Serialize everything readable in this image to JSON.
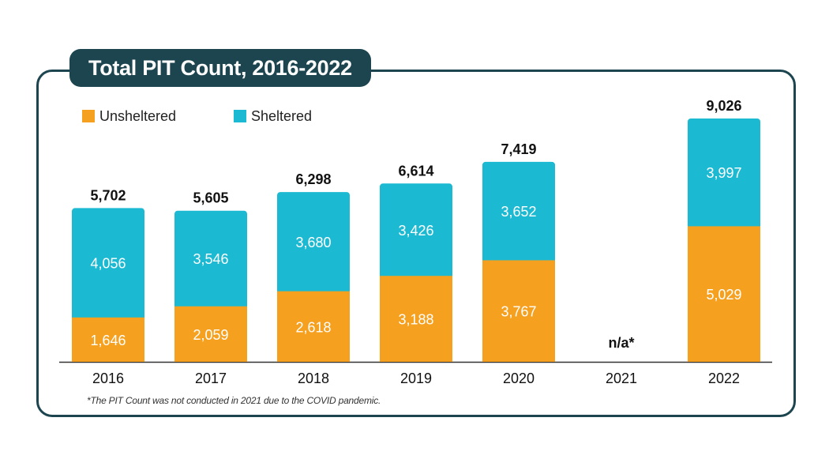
{
  "chart_data": {
    "type": "bar",
    "stacked": true,
    "title": "Total PIT Count, 2016-2022",
    "categories": [
      "2016",
      "2017",
      "2018",
      "2019",
      "2020",
      "2021",
      "2022"
    ],
    "series": [
      {
        "name": "Unsheltered",
        "color": "#f6a01f",
        "values": [
          1646,
          2059,
          2618,
          3188,
          3767,
          null,
          5029
        ],
        "labels": [
          "1,646",
          "2,059",
          "2,618",
          "3,188",
          "3,767",
          "",
          "5,029"
        ]
      },
      {
        "name": "Sheltered",
        "color": "#1cbad2",
        "values": [
          4056,
          3546,
          3680,
          3426,
          3652,
          null,
          3997
        ],
        "labels": [
          "4,056",
          "3,546",
          "3,680",
          "3,426",
          "3,652",
          "",
          "3,997"
        ]
      }
    ],
    "totals": [
      5702,
      5605,
      6298,
      6614,
      7419,
      null,
      9026
    ],
    "total_labels": [
      "5,702",
      "5,605",
      "6,298",
      "6,614",
      "7,419",
      "n/a*",
      "9,026"
    ],
    "xlabel": "",
    "ylabel": "",
    "ylim": [
      0,
      10000
    ],
    "grid": false,
    "legend": "top-left",
    "footnote": "*The PIT Count was not conducted in 2021 due to the COVID pandemic."
  }
}
